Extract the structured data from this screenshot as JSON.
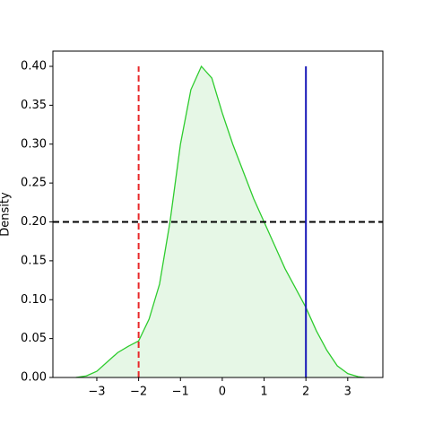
{
  "chart_data": {
    "type": "kde",
    "y_label": "Density",
    "x": [
      -3.5,
      -3.25,
      -3,
      -2.75,
      -2.5,
      -2.25,
      -2,
      -1.75,
      -1.5,
      -1.25,
      -1,
      -0.75,
      -0.5,
      -0.25,
      0,
      0.25,
      0.5,
      0.75,
      1,
      1.25,
      1.5,
      1.75,
      2,
      2.25,
      2.5,
      2.75,
      3,
      3.25,
      3.4
    ],
    "values": [
      0,
      0.002,
      0.008,
      0.02,
      0.032,
      0.04,
      0.047,
      0.075,
      0.12,
      0.2,
      0.3,
      0.37,
      0.4,
      0.385,
      0.34,
      0.3,
      0.265,
      0.23,
      0.2,
      0.17,
      0.14,
      0.115,
      0.09,
      0.06,
      0.035,
      0.015,
      0.005,
      0.001,
      0
    ],
    "color": "#2ecc2e",
    "fill_color": "#e6f7e6",
    "vlines": [
      {
        "x": -2,
        "ylim": [
          0,
          0.4
        ],
        "color": "#e8282a",
        "style": "dashed"
      },
      {
        "x": 2,
        "ylim": [
          0,
          0.4
        ],
        "color": "#1818b8",
        "style": "solid"
      }
    ],
    "hlines": [
      {
        "y": 0.2,
        "color": "#000000",
        "style": "dashed"
      }
    ],
    "xlim": [
      -4.05,
      3.84
    ],
    "ylim": [
      0,
      0.4196
    ],
    "xticks": [
      {
        "value": -3,
        "label": "−3"
      },
      {
        "value": -2,
        "label": "−2"
      },
      {
        "value": -1,
        "label": "−1"
      },
      0,
      1,
      2,
      3
    ],
    "yticks": [
      {
        "value": 0,
        "label": "0.00"
      },
      {
        "value": 0.05,
        "label": "0.05"
      },
      {
        "value": 0.1,
        "label": "0.10"
      },
      {
        "value": 0.15,
        "label": "0.15"
      },
      {
        "value": 0.2,
        "label": "0.20"
      },
      {
        "value": 0.25,
        "label": "0.25"
      },
      {
        "value": 0.3,
        "label": "0.30"
      },
      {
        "value": 0.35,
        "label": "0.35"
      },
      {
        "value": 0.4,
        "label": "0.40"
      }
    ]
  }
}
